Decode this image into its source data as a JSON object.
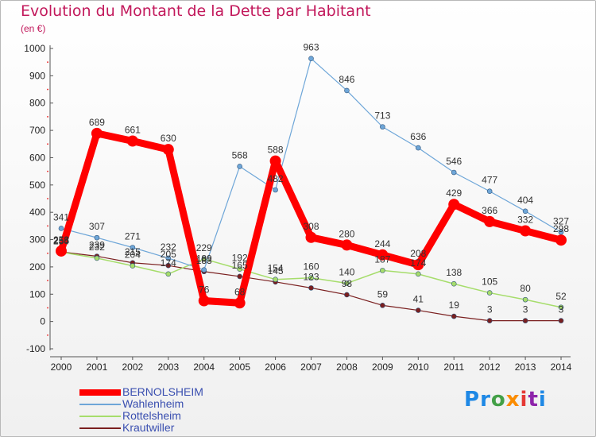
{
  "title": "Evolution du Montant de la Dette par Habitant",
  "unit": "(en €)",
  "brand": {
    "text": "Proxiti",
    "colors": [
      "#1e88e5",
      "#1e88e5",
      "#43a047",
      "#fb8c00",
      "#e53935",
      "#8e24aa",
      "#1e88e5"
    ]
  },
  "chart_data": {
    "type": "line",
    "x": [
      "2000",
      "2001",
      "2002",
      "2003",
      "2004",
      "2005",
      "2006",
      "2007",
      "2008",
      "2009",
      "2010",
      "2011",
      "2012",
      "2013",
      "2014"
    ],
    "ylim": [
      -100,
      1000
    ],
    "yticks": [
      -100,
      0,
      100,
      200,
      300,
      400,
      500,
      600,
      700,
      800,
      900,
      1000
    ],
    "grid": false,
    "legend": "bottom-left",
    "series": [
      {
        "name": "BERNOLSHEIM",
        "color": "#ff0000",
        "width": 9,
        "marker": 7,
        "values": [
          258,
          689,
          661,
          630,
          76,
          68,
          588,
          308,
          280,
          244,
          208,
          429,
          366,
          332,
          298
        ]
      },
      {
        "name": "Wahlenheim",
        "color": "#6ea6d8",
        "width": 1.2,
        "marker": 3,
        "values": [
          341,
          307,
          271,
          232,
          189,
          568,
          482,
          963,
          846,
          713,
          636,
          546,
          477,
          404,
          327
        ]
      },
      {
        "name": "Rottelsheim",
        "color": "#a6dd6b",
        "width": 1.5,
        "marker": 3,
        "values": [
          254,
          232,
          204,
          174,
          229,
          192,
          154,
          160,
          140,
          187,
          174,
          138,
          105,
          80,
          52
        ]
      },
      {
        "name": "Krautwiller",
        "color": "#7a1f1f",
        "width": 1.2,
        "marker": 3,
        "values": [
          255,
          239,
          215,
          205,
          183,
          165,
          145,
          123,
          98,
          59,
          41,
          19,
          3,
          3,
          3
        ]
      }
    ]
  }
}
